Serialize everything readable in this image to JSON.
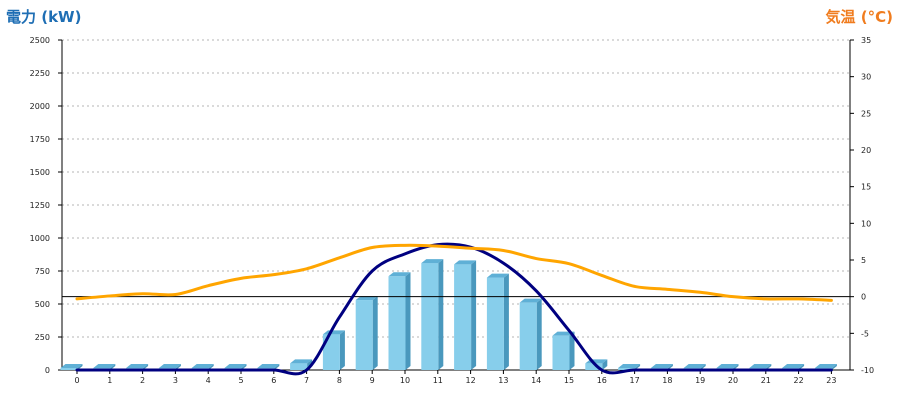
{
  "chart_data": {
    "type": "bar+line",
    "x": [
      0,
      1,
      2,
      3,
      4,
      5,
      6,
      7,
      8,
      9,
      10,
      11,
      12,
      13,
      14,
      15,
      16,
      17,
      18,
      19,
      20,
      21,
      22,
      23
    ],
    "y_left_label": "電力 (kW)",
    "y_right_label": "気温 (°C)",
    "y_left_ticks": [
      "0",
      "250",
      "500",
      "750",
      "1000",
      "1250",
      "1500",
      "1750",
      "2000",
      "2250",
      "2500"
    ],
    "y_right_ticks": [
      "-10",
      "-5",
      "0",
      "5",
      "10",
      "15",
      "20",
      "25",
      "30",
      "35"
    ],
    "ylim_left": [
      0,
      2500
    ],
    "ylim_right": [
      -10,
      35
    ],
    "grid": true,
    "series": [
      {
        "kind": "bar",
        "axis": "left",
        "color": "#87ceeb",
        "values": [
          0,
          0,
          0,
          0,
          0,
          0,
          0,
          50,
          270,
          530,
          710,
          810,
          800,
          700,
          510,
          260,
          50,
          0,
          0,
          0,
          0,
          0,
          0,
          0
        ]
      },
      {
        "kind": "line",
        "axis": "left",
        "color": "#000080",
        "values": [
          0,
          0,
          0,
          0,
          0,
          0,
          0,
          0,
          400,
          750,
          880,
          950,
          930,
          810,
          600,
          300,
          0,
          0,
          0,
          0,
          0,
          0,
          0,
          0
        ]
      },
      {
        "kind": "line",
        "axis": "right",
        "color": "#ffa500",
        "values": [
          -0.3,
          0.1,
          0.4,
          0.3,
          1.5,
          2.5,
          3.0,
          3.8,
          5.3,
          6.7,
          7.0,
          6.9,
          6.6,
          6.3,
          5.2,
          4.5,
          2.9,
          1.4,
          1.0,
          0.6,
          0.0,
          -0.3,
          -0.3,
          -0.5
        ]
      }
    ]
  },
  "colors": {
    "left_title": "#1e6eb4",
    "right_title": "#f07c1e"
  }
}
